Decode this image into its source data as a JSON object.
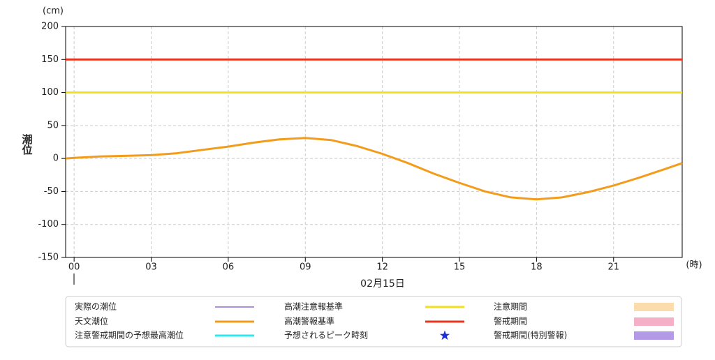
{
  "chart_data": {
    "type": "line",
    "y_unit": "(cm)",
    "y_label": "潮位",
    "x_unit": "(時)",
    "date_label": "02月15日",
    "x": [
      -0.33,
      0,
      1,
      2,
      3,
      4,
      5,
      6,
      7,
      8,
      9,
      10,
      11,
      12,
      13,
      14,
      15,
      16,
      17,
      18,
      19,
      20,
      21,
      22,
      23,
      23.67
    ],
    "series": [
      {
        "name": "天文潮位",
        "color": "#f39c1b",
        "values": [
          0,
          1,
          3,
          4,
          5,
          8,
          13,
          18,
          24,
          29,
          31,
          28,
          19,
          7,
          -7,
          -23,
          -37,
          -50,
          -59,
          -62,
          -59,
          -51,
          -41,
          -29,
          -16,
          -7
        ]
      }
    ],
    "thresholds": [
      {
        "name": "高潮注意報基準",
        "color": "#f0e11c",
        "value": 100
      },
      {
        "name": "高潮警報基準",
        "color": "#e8351e",
        "value": 150
      }
    ],
    "extra_legend": [
      {
        "name": "実際の潮位",
        "color": "#8a6fd6",
        "marker": "line"
      },
      {
        "name": "注意警戒期間の予想最高潮位",
        "color": "#2ee8ee",
        "marker": "line"
      },
      {
        "name": "予想されるピーク時刻",
        "color": "#1a2fd6",
        "marker": "star"
      },
      {
        "name": "注意期間",
        "color": "#fbdcad",
        "marker": "band"
      },
      {
        "name": "警戒期間",
        "color": "#f5b0c8",
        "marker": "band"
      },
      {
        "name": "警戒期間(特別警報)",
        "color": "#b39ae6",
        "marker": "band"
      }
    ],
    "xlim": [
      -0.33,
      23.67
    ],
    "xticks": [
      {
        "value": 0,
        "label": "00"
      },
      {
        "value": 3,
        "label": "03"
      },
      {
        "value": 6,
        "label": "06"
      },
      {
        "value": 9,
        "label": "09"
      },
      {
        "value": 12,
        "label": "12"
      },
      {
        "value": 15,
        "label": "15"
      },
      {
        "value": 18,
        "label": "18"
      },
      {
        "value": 21,
        "label": "21"
      }
    ],
    "ylim": [
      -150,
      200
    ],
    "yticks": [
      -150,
      -100,
      -50,
      0,
      50,
      100,
      150,
      200
    ],
    "grid": true
  }
}
